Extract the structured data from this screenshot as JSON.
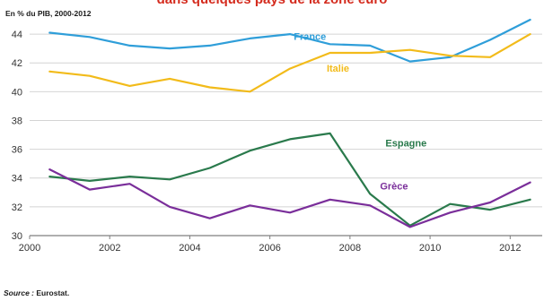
{
  "header": {
    "subtitle": "En % du PIB, 2000-2012"
  },
  "footer": {
    "source_label": "Source :",
    "source_text": "Eurostat."
  },
  "colors": {
    "France": "#2f9ed9",
    "Italie": "#f2bb1a",
    "Espagne": "#2a7a4c",
    "Grèce": "#7a2e9a",
    "title": "#d42b1e"
  },
  "chart_data": {
    "type": "line",
    "title": "dans quelques pays de la zone euro",
    "subtitle": "En % du PIB, 2000-2012",
    "xlabel": "",
    "ylabel": "",
    "xlim": [
      2000,
      2012.8
    ],
    "ylim": [
      30,
      45
    ],
    "x_ticks": [
      "2000",
      "2002",
      "2004",
      "2006",
      "2008",
      "2010",
      "2012"
    ],
    "y_ticks": [
      "30",
      "32",
      "34",
      "36",
      "38",
      "40",
      "42",
      "44"
    ],
    "grid": true,
    "x": [
      2000.5,
      2001.5,
      2002.5,
      2003.5,
      2004.5,
      2005.5,
      2006.5,
      2007.5,
      2008.5,
      2009.5,
      2010.5,
      2011.5,
      2012.5
    ],
    "series": [
      {
        "name": "France",
        "values": [
          44.1,
          43.8,
          43.2,
          43.0,
          43.2,
          43.7,
          44.0,
          43.3,
          43.2,
          42.1,
          42.4,
          43.6,
          45.0
        ]
      },
      {
        "name": "Italie",
        "values": [
          41.4,
          41.1,
          40.4,
          40.9,
          40.3,
          40.0,
          41.6,
          42.7,
          42.7,
          42.9,
          42.5,
          42.4,
          44.0
        ]
      },
      {
        "name": "Espagne",
        "values": [
          34.1,
          33.8,
          34.1,
          33.9,
          34.7,
          35.9,
          36.7,
          37.1,
          32.9,
          30.7,
          32.2,
          31.8,
          32.5
        ]
      },
      {
        "name": "Grèce",
        "values": [
          34.6,
          33.2,
          33.6,
          32.0,
          31.2,
          32.1,
          31.6,
          32.5,
          32.1,
          30.6,
          31.6,
          32.3,
          33.7
        ]
      }
    ],
    "series_labels": [
      {
        "name": "France",
        "at": [
          2007.0,
          43.6
        ]
      },
      {
        "name": "Italie",
        "at": [
          2007.7,
          41.4
        ]
      },
      {
        "name": "Espagne",
        "at": [
          2009.4,
          36.2
        ]
      },
      {
        "name": "Grèce",
        "at": [
          2009.1,
          33.2
        ]
      }
    ]
  }
}
